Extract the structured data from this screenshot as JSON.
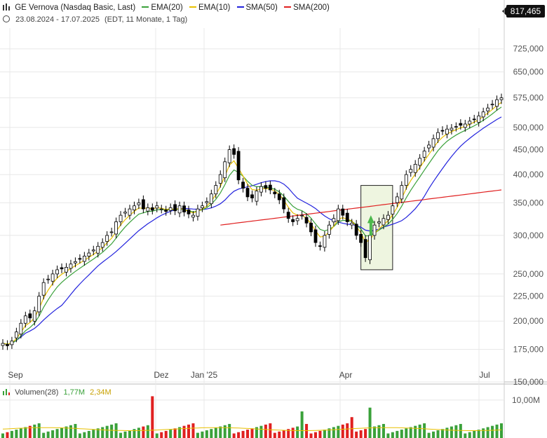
{
  "header": {
    "bar_icon": "bar-chart-icon",
    "instrument": "GE Vernova (Nasdaq Basic, Last)",
    "indicators": [
      {
        "label": "EMA(20)",
        "color": "#3aa13a"
      },
      {
        "label": "EMA(10)",
        "color": "#e8c000"
      },
      {
        "label": "SMA(50)",
        "color": "#2222dd"
      },
      {
        "label": "SMA(200)",
        "color": "#e02020"
      }
    ],
    "clock_icon": "clock-icon",
    "range": "23.08.2024 - 17.07.2025",
    "range_detail": "(EDT, 11 Monate, 1 Tag)"
  },
  "last_price": "817,465",
  "volume_header": {
    "label": "Volumen(28)",
    "value1": "1,77M",
    "value2": "2,34M",
    "color1": "#3aa13a",
    "color2": "#e8c000"
  },
  "chart_data": {
    "type": "candlestick",
    "y_scale": "log",
    "ylim": [
      150000,
      800000
    ],
    "y_ticks": [
      "725,000",
      "650,000",
      "575,000",
      "500,000",
      "450,000",
      "400,000",
      "350,000",
      "300,000",
      "250,000",
      "225,000",
      "200,000",
      "175,000",
      "150,000"
    ],
    "x_ticks": [
      "Sep",
      "Dez",
      "Jan '25",
      "Apr",
      "Jul"
    ],
    "grid": true,
    "colors": {
      "up": "#ffffff",
      "down": "#000000",
      "ema20": "#3aa13a",
      "ema10": "#e8c000",
      "sma50": "#2222dd",
      "sma200": "#e02020",
      "highlight": "#eef5e0"
    },
    "close": [
      180000,
      178000,
      182000,
      190000,
      198000,
      205000,
      203000,
      210000,
      225000,
      240000,
      244000,
      250000,
      255000,
      256000,
      258000,
      262000,
      265000,
      268000,
      272000,
      276000,
      280000,
      285000,
      290000,
      300000,
      305000,
      320000,
      330000,
      335000,
      340000,
      345000,
      350000,
      340000,
      342000,
      338000,
      345000,
      340000,
      336000,
      342000,
      337000,
      345000,
      335000,
      332000,
      330000,
      340000,
      345000,
      352000,
      365000,
      380000,
      400000,
      425000,
      450000,
      440000,
      390000,
      375000,
      360000,
      358000,
      370000,
      378000,
      375000,
      372000,
      365000,
      355000,
      340000,
      325000,
      320000,
      325000,
      330000,
      318000,
      305000,
      290000,
      285000,
      300000,
      315000,
      325000,
      340000,
      330000,
      320000,
      318000,
      300000,
      290000,
      270000,
      300000,
      315000,
      320000,
      325000,
      330000,
      345000,
      360000,
      380000,
      400000,
      410000,
      420000,
      432000,
      447000,
      460000,
      474000,
      488000,
      492000,
      496000,
      498000,
      502000,
      505000,
      508000,
      515000,
      520000,
      528000,
      538000,
      548000,
      558000,
      570000,
      575000
    ],
    "sma200_range": {
      "start": 315000,
      "end": 372000
    },
    "highlight_box": {
      "x_start": 79,
      "x_end": 86,
      "y_low": 255000,
      "y_high": 380000
    },
    "volume_ylabel": "10,00M",
    "volume_avg": [
      1.77,
      2.34
    ]
  }
}
